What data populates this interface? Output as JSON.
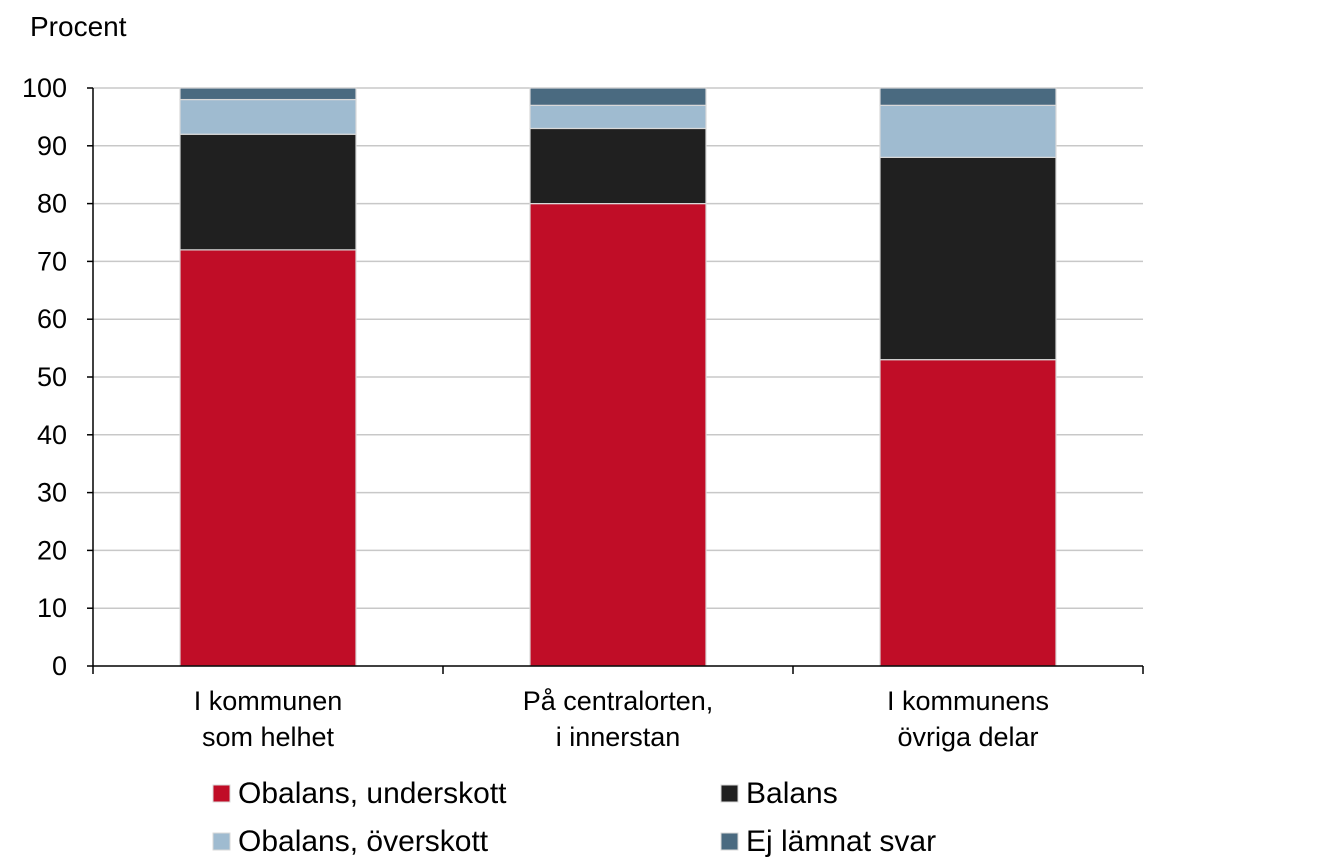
{
  "chart_data": {
    "type": "bar",
    "stacked": true,
    "ylabel": "Procent",
    "ylim": [
      0,
      100
    ],
    "yticks": [
      0,
      10,
      20,
      30,
      40,
      50,
      60,
      70,
      80,
      90,
      100
    ],
    "grid": true,
    "categories": [
      [
        "I kommunen",
        "som helhet"
      ],
      [
        "På centralorten,",
        "i innerstan"
      ],
      [
        "I kommunens",
        "övriga delar"
      ]
    ],
    "series": [
      {
        "name": "Obalans, underskott",
        "color": "#c00d27",
        "values": [
          72,
          80,
          53
        ]
      },
      {
        "name": "Balans",
        "color": "#202020",
        "values": [
          20,
          13,
          35
        ]
      },
      {
        "name": "Obalans, överskott",
        "color": "#9fbbd0",
        "values": [
          6,
          4,
          9
        ]
      },
      {
        "name": "Ej lämnat svar",
        "color": "#4a6a80",
        "values": [
          2,
          3,
          3
        ]
      }
    ],
    "legend_position": "bottom"
  }
}
